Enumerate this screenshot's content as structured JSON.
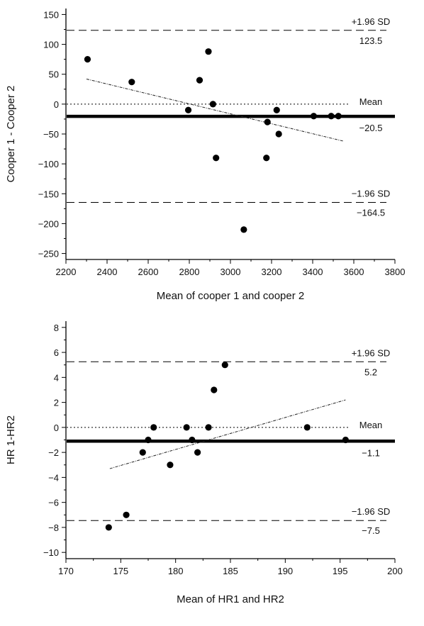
{
  "chart_data": [
    {
      "type": "scatter",
      "title": "",
      "xlabel": "Mean of cooper 1 and cooper 2",
      "ylabel": "Cooper 1 - Cooper 2",
      "xlim": [
        2200,
        3800
      ],
      "ylim": [
        -260,
        160
      ],
      "x_ticks": [
        "2200",
        "2400",
        "2600",
        "2800",
        "3000",
        "3200",
        "3400",
        "3600",
        "3800"
      ],
      "y_ticks": [
        "150",
        "100",
        "50",
        "0",
        "−50",
        "−100",
        "−150",
        "−200",
        "−250"
      ],
      "grid": false,
      "points": [
        {
          "x": 2305,
          "y": 75
        },
        {
          "x": 2520,
          "y": 37
        },
        {
          "x": 2795,
          "y": -10
        },
        {
          "x": 2850,
          "y": 40
        },
        {
          "x": 2893,
          "y": 88
        },
        {
          "x": 2915,
          "y": 0
        },
        {
          "x": 2930,
          "y": -90
        },
        {
          "x": 3065,
          "y": -210
        },
        {
          "x": 3175,
          "y": -90
        },
        {
          "x": 3180,
          "y": -30
        },
        {
          "x": 3225,
          "y": -10
        },
        {
          "x": 3235,
          "y": -50
        },
        {
          "x": 3405,
          "y": -20
        },
        {
          "x": 3490,
          "y": -20
        },
        {
          "x": 3525,
          "y": -20
        }
      ],
      "reference_lines": {
        "upper": {
          "label": "+1.96 SD",
          "value_label": "123.5",
          "value": 123.5
        },
        "mean": {
          "label": "Mean",
          "value_label": "−20.5",
          "value": -20.5
        },
        "lower": {
          "label": "−1.96 SD",
          "value_label": "−164.5",
          "value": -164.5
        },
        "zero": {
          "value": 0
        }
      },
      "regression_line": {
        "x": [
          2300,
          3550
        ],
        "y": [
          42,
          -62
        ]
      }
    },
    {
      "type": "scatter",
      "title": "",
      "xlabel": "Mean of HR1 and HR2",
      "ylabel": "HR 1-HR2",
      "xlim": [
        170,
        200
      ],
      "ylim": [
        -10.5,
        8.5
      ],
      "x_ticks": [
        "170",
        "175",
        "180",
        "185",
        "190",
        "195",
        "200"
      ],
      "y_ticks": [
        "8",
        "6",
        "4",
        "2",
        "0",
        "−2",
        "−4",
        "−6",
        "−8",
        "−10"
      ],
      "grid": false,
      "points": [
        {
          "x": 173.9,
          "y": -8
        },
        {
          "x": 175.5,
          "y": -7
        },
        {
          "x": 177.0,
          "y": -2
        },
        {
          "x": 177.5,
          "y": -1
        },
        {
          "x": 178.0,
          "y": 0
        },
        {
          "x": 179.5,
          "y": -3
        },
        {
          "x": 181.0,
          "y": 0
        },
        {
          "x": 181.5,
          "y": -1
        },
        {
          "x": 182.0,
          "y": -2
        },
        {
          "x": 183.0,
          "y": 0
        },
        {
          "x": 183.5,
          "y": 3
        },
        {
          "x": 184.5,
          "y": 5
        },
        {
          "x": 192.0,
          "y": 0
        },
        {
          "x": 195.5,
          "y": -1
        }
      ],
      "reference_lines": {
        "upper": {
          "label": "+1.96 SD",
          "value_label": "5.2",
          "value": 5.25
        },
        "mean": {
          "label": "Mean",
          "value_label": "−1.1",
          "value": -1.1
        },
        "lower": {
          "label": "−1.96 SD",
          "value_label": "−7.5",
          "value": -7.45
        },
        "zero": {
          "value": 0
        }
      },
      "regression_line": {
        "x": [
          174,
          195.5
        ],
        "y": [
          -3.3,
          2.2
        ]
      }
    }
  ]
}
